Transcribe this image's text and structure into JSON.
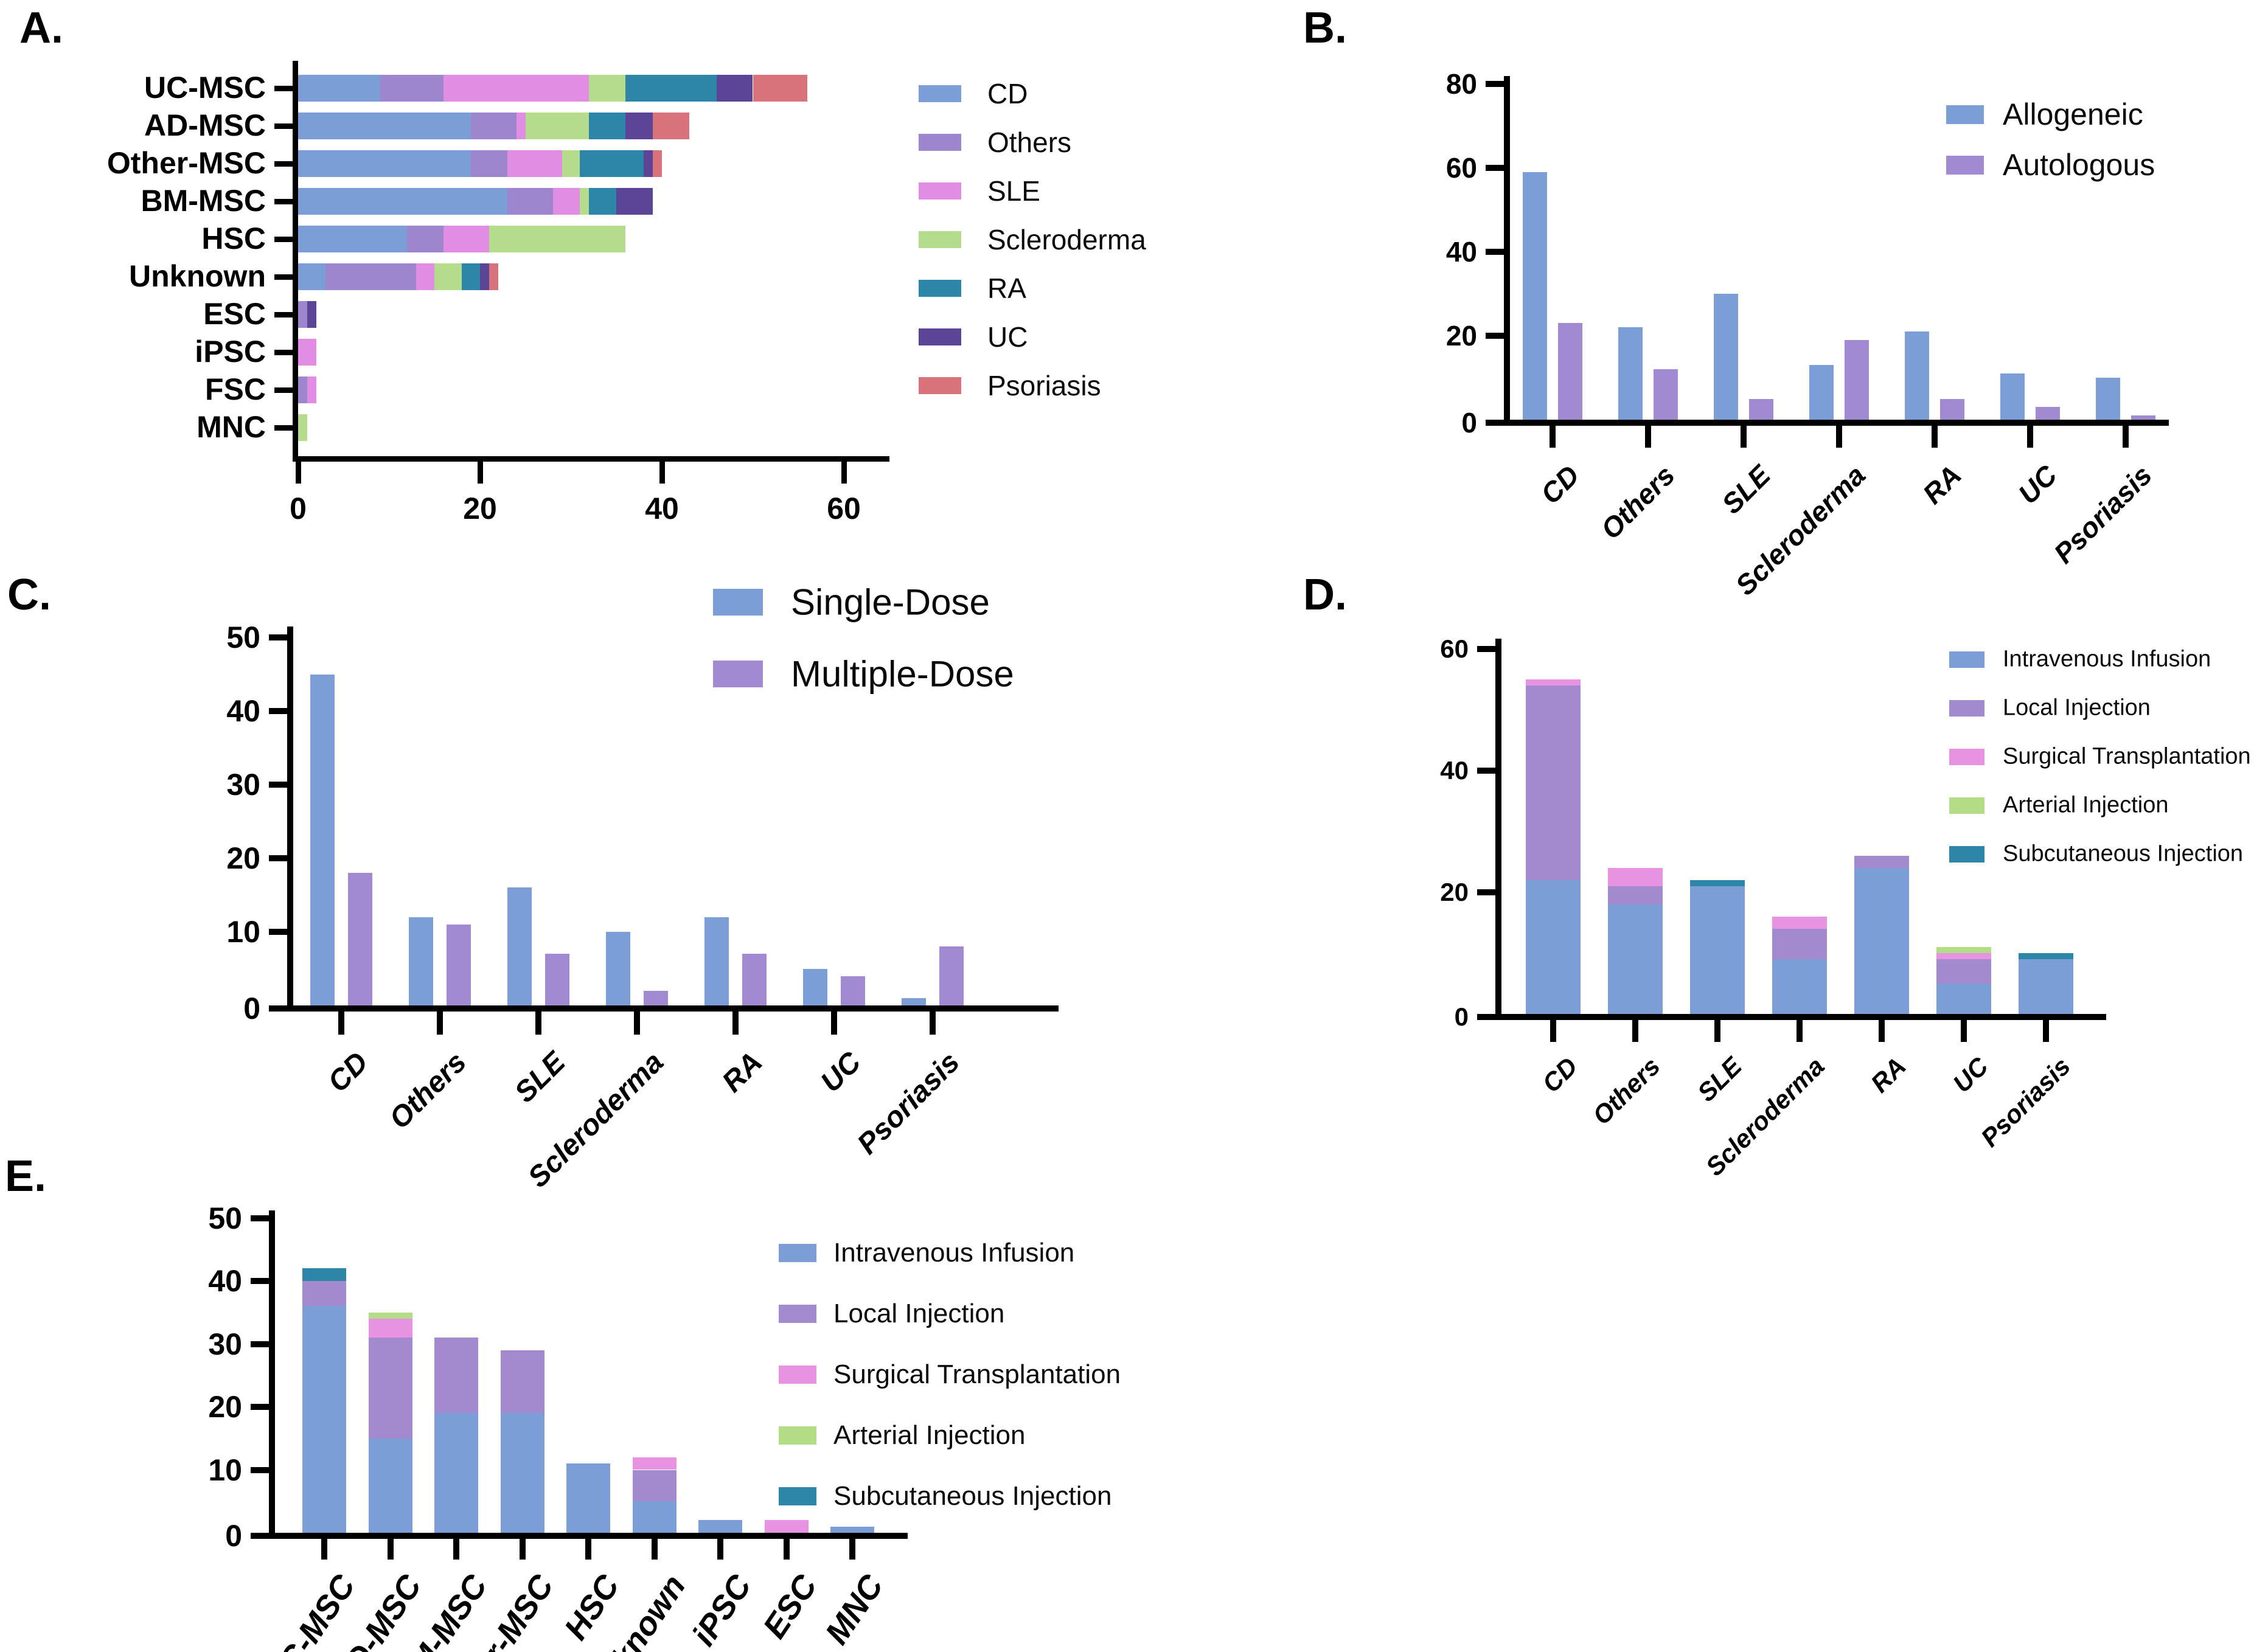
{
  "background_color": "#FFFFFF",
  "axis_color": "#000000",
  "chart_data": [
    {
      "panel": "A.",
      "type": "bar",
      "orientation": "horizontal",
      "stacked": true,
      "categories": [
        "UC-MSC",
        "AD-MSC",
        "Other-MSC",
        "BM-MSC",
        "HSC",
        "Unknown",
        "ESC",
        "iPSC",
        "FSC",
        "MNC"
      ],
      "series": [
        {
          "name": "CD",
          "color": "#7C9ED6",
          "values": [
            9,
            19,
            19,
            23,
            12,
            3,
            0,
            0,
            0,
            0
          ]
        },
        {
          "name": "Others",
          "color": "#9E86CF",
          "values": [
            7,
            5,
            4,
            5,
            4,
            10,
            1,
            0,
            1,
            0
          ]
        },
        {
          "name": "SLE",
          "color": "#E18DE3",
          "values": [
            16,
            1,
            6,
            3,
            5,
            2,
            0,
            2,
            1,
            0
          ]
        },
        {
          "name": "Scleroderma",
          "color": "#B5DC8C",
          "values": [
            4,
            7,
            2,
            1,
            15,
            3,
            0,
            0,
            0,
            1
          ]
        },
        {
          "name": "RA",
          "color": "#2D85A7",
          "values": [
            10,
            4,
            7,
            3,
            0,
            2,
            0,
            0,
            0,
            0
          ]
        },
        {
          "name": "UC",
          "color": "#5C4497",
          "values": [
            4,
            3,
            1,
            4,
            0,
            1,
            1,
            0,
            0,
            0
          ]
        },
        {
          "name": "Psoriasis",
          "color": "#D9737B",
          "values": [
            6,
            4,
            1,
            0,
            0,
            1,
            0,
            0,
            0,
            0
          ]
        }
      ],
      "xlim": [
        0,
        60
      ],
      "xticks": [
        0,
        20,
        40,
        60
      ],
      "legend_position": "right"
    },
    {
      "panel": "B.",
      "type": "bar",
      "orientation": "vertical",
      "stacked": false,
      "categories": [
        "CD",
        "Others",
        "SLE",
        "Scleroderma",
        "RA",
        "UC",
        "Psoriasis"
      ],
      "series": [
        {
          "name": "Allogeneic",
          "color": "#7C9ED6",
          "values": [
            59,
            22,
            30,
            13,
            21,
            11,
            10
          ]
        },
        {
          "name": "Autologous",
          "color": "#A28AD2",
          "values": [
            23,
            12,
            5,
            19,
            5,
            3,
            1
          ]
        }
      ],
      "ylim": [
        0,
        80
      ],
      "yticks": [
        0,
        20,
        40,
        60,
        80
      ],
      "legend_position": "top-right"
    },
    {
      "panel": "C.",
      "type": "bar",
      "orientation": "vertical",
      "stacked": false,
      "categories": [
        "CD",
        "Others",
        "SLE",
        "Scleroderma",
        "RA",
        "UC",
        "Psoriasis"
      ],
      "series": [
        {
          "name": "Single-Dose",
          "color": "#7C9ED6",
          "values": [
            45,
            12,
            16,
            10,
            12,
            5,
            1
          ]
        },
        {
          "name": "Multiple-Dose",
          "color": "#A28AD2",
          "values": [
            18,
            11,
            7,
            2,
            7,
            4,
            8
          ]
        }
      ],
      "ylim": [
        0,
        50
      ],
      "yticks": [
        0,
        10,
        20,
        30,
        40,
        50
      ],
      "legend_position": "top-right"
    },
    {
      "panel": "D.",
      "type": "bar",
      "orientation": "vertical",
      "stacked": true,
      "categories": [
        "CD",
        "Others",
        "SLE",
        "Scleroderma",
        "RA",
        "UC",
        "Psoriasis"
      ],
      "series": [
        {
          "name": "Intravenous Infusion",
          "color": "#7C9ED6",
          "values": [
            22,
            18,
            21,
            9,
            24,
            5,
            9
          ]
        },
        {
          "name": "Local Injection",
          "color": "#A389CE",
          "values": [
            32,
            3,
            0,
            5,
            2,
            4,
            0
          ]
        },
        {
          "name": "Surgical Transplantation",
          "color": "#E892E2",
          "values": [
            1,
            3,
            0,
            2,
            0,
            1,
            0
          ]
        },
        {
          "name": "Arterial Injection",
          "color": "#B3DC87",
          "values": [
            0,
            0,
            0,
            0,
            0,
            1,
            0
          ]
        },
        {
          "name": "Subcutaneous Injection",
          "color": "#2D85A7",
          "values": [
            0,
            0,
            1,
            0,
            0,
            0,
            1
          ]
        }
      ],
      "ylim": [
        0,
        60
      ],
      "yticks": [
        0,
        20,
        40,
        60
      ],
      "legend_position": "right"
    },
    {
      "panel": "E.",
      "type": "bar",
      "orientation": "vertical",
      "stacked": true,
      "categories": [
        "UC-MSC",
        "AD-MSC",
        "BM-MSC",
        "Other-MSC",
        "HSC",
        "Unknown",
        "iPSC",
        "ESC",
        "MNC"
      ],
      "series": [
        {
          "name": "Intravenous Infusion",
          "color": "#7C9ED6",
          "values": [
            36,
            15,
            19,
            19,
            11,
            5,
            2,
            0,
            1
          ]
        },
        {
          "name": "Local Injection",
          "color": "#A389CE",
          "values": [
            4,
            16,
            12,
            10,
            0,
            5,
            0,
            0,
            0
          ]
        },
        {
          "name": "Surgical Transplantation",
          "color": "#E892E2",
          "values": [
            0,
            3,
            0,
            0,
            0,
            2,
            0,
            2,
            0
          ]
        },
        {
          "name": "Arterial Injection",
          "color": "#B3DC87",
          "values": [
            0,
            1,
            0,
            0,
            0,
            0,
            0,
            0,
            0
          ]
        },
        {
          "name": "Subcutaneous Injection",
          "color": "#2D85A7",
          "values": [
            2,
            0,
            0,
            0,
            0,
            0,
            0,
            0,
            0
          ]
        }
      ],
      "ylim": [
        0,
        50
      ],
      "yticks": [
        0,
        10,
        20,
        30,
        40,
        50
      ],
      "legend_position": "right"
    }
  ]
}
